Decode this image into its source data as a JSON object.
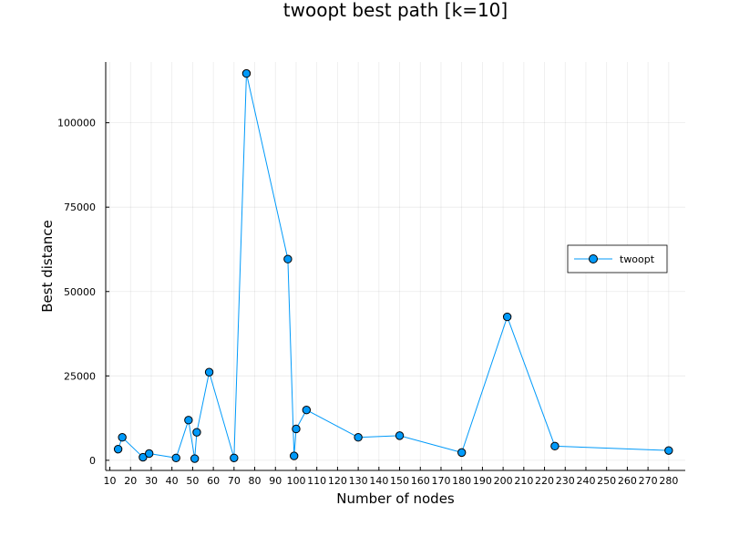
{
  "chart_data": {
    "type": "line",
    "title": "twoopt best path [k=10]",
    "xlabel": "Number of nodes",
    "ylabel": "Best distance",
    "xlim": [
      8,
      288
    ],
    "ylim": [
      -3000,
      118000
    ],
    "x_ticks": [
      10,
      20,
      30,
      40,
      50,
      60,
      70,
      80,
      90,
      100,
      110,
      120,
      130,
      140,
      150,
      160,
      170,
      180,
      190,
      200,
      210,
      220,
      230,
      240,
      250,
      260,
      270,
      280
    ],
    "y_ticks": [
      0,
      25000,
      50000,
      75000,
      100000
    ],
    "y_tick_labels": [
      "0",
      "25000",
      "50000",
      "75000",
      "100000"
    ],
    "grid": true,
    "legend_position": "right",
    "series": [
      {
        "name": "twoopt",
        "color": "#009AFA",
        "marker": "circle",
        "x": [
          14,
          16,
          26,
          29,
          42,
          48,
          51,
          52,
          58,
          70,
          76,
          96,
          99,
          100,
          105,
          130,
          150,
          180,
          202,
          225,
          280
        ],
        "y": [
          3300,
          6800,
          900,
          2000,
          700,
          11900,
          500,
          8300,
          26100,
          700,
          114600,
          59600,
          1300,
          9300,
          14900,
          6800,
          7300,
          2300,
          42500,
          4200,
          2900
        ]
      }
    ]
  }
}
